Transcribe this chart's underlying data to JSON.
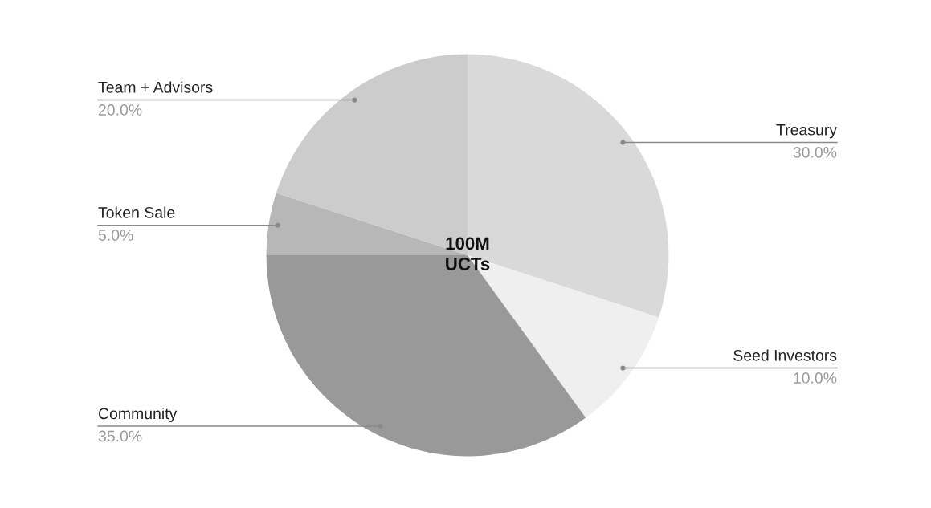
{
  "chart_data": {
    "type": "pie",
    "categories": [
      "Treasury",
      "Seed Investors",
      "Community",
      "Token Sale",
      "Team + Advisors"
    ],
    "values": [
      30,
      10,
      35,
      5,
      20
    ],
    "colors": [
      "#d9d9d9",
      "#efefef",
      "#999999",
      "#b7b7b7",
      "#cccccc"
    ],
    "value_labels": [
      "30.0%",
      "10.0%",
      "35.0%",
      "5.0%",
      "20.0%"
    ],
    "annotations": [
      "100M\nUCTs"
    ]
  }
}
